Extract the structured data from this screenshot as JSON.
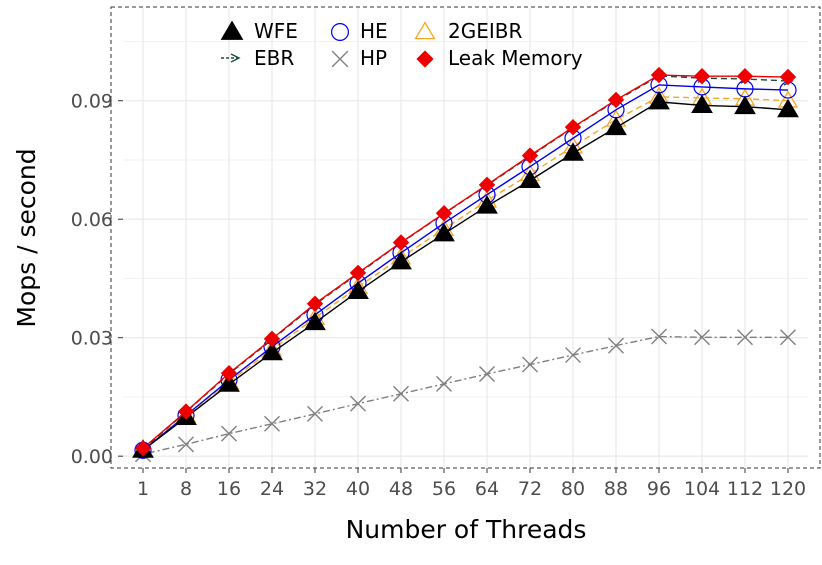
{
  "chart_data": {
    "type": "line",
    "xlabel": "Number of Threads",
    "ylabel": "Mops / second",
    "categories": [
      "1",
      "8",
      "16",
      "24",
      "32",
      "40",
      "48",
      "56",
      "64",
      "72",
      "80",
      "88",
      "96",
      "104",
      "112",
      "120"
    ],
    "x": [
      1,
      8,
      16,
      24,
      32,
      40,
      48,
      56,
      64,
      72,
      80,
      88,
      96,
      104,
      112,
      120
    ],
    "y_ticks": [
      0.0,
      0.03,
      0.06,
      0.09
    ],
    "y_tick_labels": [
      "0.00",
      "0.03",
      "0.06",
      "0.09"
    ],
    "ylim": [
      -0.0035,
      0.1155
    ],
    "grid": true,
    "legend_position": "top",
    "series": [
      {
        "name": "WFE",
        "color": "#000000",
        "marker": "triangle-filled",
        "linestyle": "solid",
        "values": [
          0.0015,
          0.0098,
          0.0182,
          0.0262,
          0.0338,
          0.0417,
          0.0492,
          0.0563,
          0.0633,
          0.0698,
          0.0767,
          0.0832,
          0.0897,
          0.0888,
          0.0885,
          0.0877
        ]
      },
      {
        "name": "EBR",
        "color": "#1b4d3e",
        "marker": "arrow",
        "linestyle": "dashed",
        "values": [
          0.0018,
          0.0112,
          0.0208,
          0.0295,
          0.0384,
          0.0462,
          0.054,
          0.0614,
          0.0686,
          0.0759,
          0.0832,
          0.09,
          0.0963,
          0.0957,
          0.0955,
          0.095
        ]
      },
      {
        "name": "HE",
        "color": "#0000ee",
        "marker": "circle-open",
        "linestyle": "solid",
        "values": [
          0.0015,
          0.0103,
          0.0193,
          0.0277,
          0.0358,
          0.0438,
          0.0515,
          0.059,
          0.0662,
          0.0733,
          0.0805,
          0.0877,
          0.094,
          0.0935,
          0.093,
          0.0927
        ]
      },
      {
        "name": "HP",
        "color": "#7f7f7f",
        "marker": "x",
        "linestyle": "dotdash",
        "values": [
          0.0005,
          0.003,
          0.0057,
          0.0082,
          0.0107,
          0.0133,
          0.0158,
          0.0183,
          0.0208,
          0.0232,
          0.0256,
          0.028,
          0.0303,
          0.0301,
          0.0301,
          0.0301
        ]
      },
      {
        "name": "2GEIBR",
        "color": "#f5a623",
        "marker": "triangle-open",
        "linestyle": "dashed",
        "values": [
          0.0017,
          0.0103,
          0.0188,
          0.027,
          0.035,
          0.0428,
          0.0503,
          0.0575,
          0.0647,
          0.0714,
          0.0784,
          0.0852,
          0.091,
          0.0907,
          0.0905,
          0.09
        ]
      },
      {
        "name": "Leak Memory",
        "color": "#ee0000",
        "marker": "diamond-filled",
        "linestyle": "solid",
        "values": [
          0.002,
          0.0113,
          0.021,
          0.0297,
          0.0386,
          0.0464,
          0.0541,
          0.0615,
          0.0687,
          0.0761,
          0.0833,
          0.0902,
          0.0965,
          0.0962,
          0.0962,
          0.096
        ]
      }
    ]
  }
}
